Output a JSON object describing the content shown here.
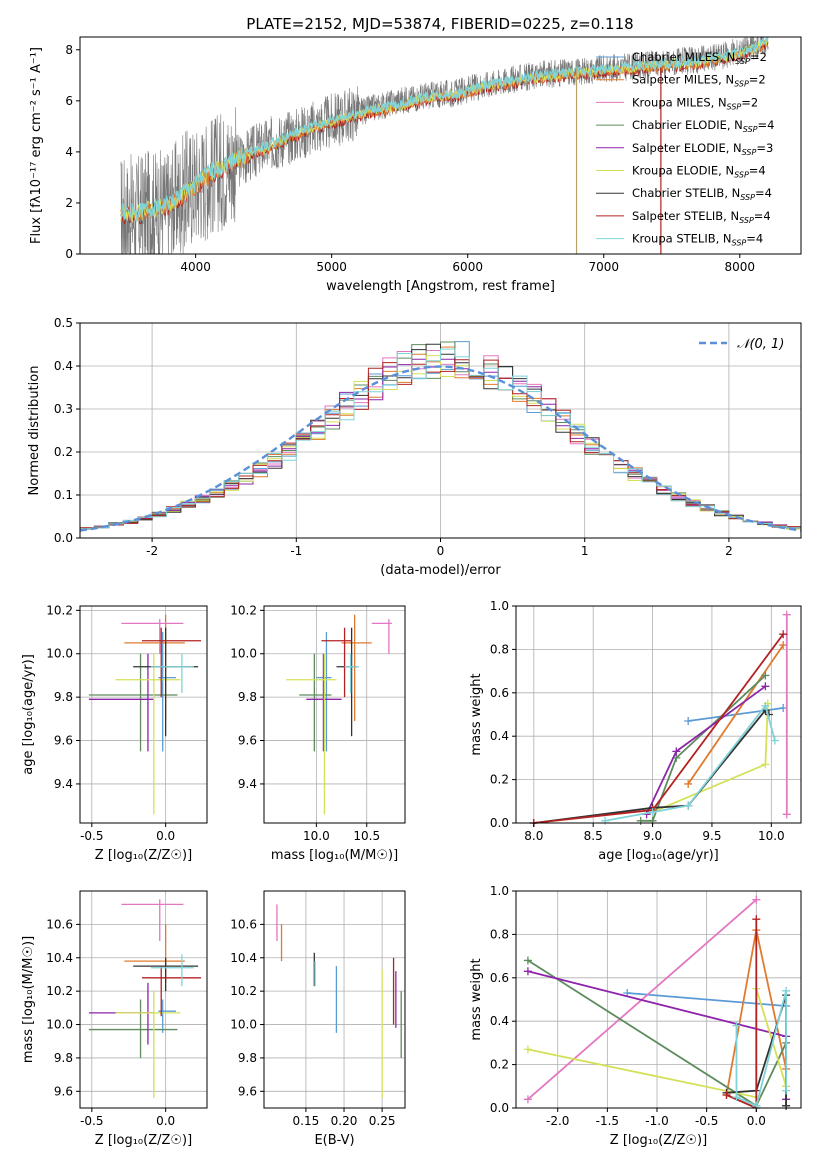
{
  "figure": {
    "title": "PLATE=2152, MJD=53874, FIBERID=0225, z=0.118"
  },
  "colors": {
    "chabrier_miles": "#5b9bd5",
    "salpeter_miles": "#e07a2e",
    "kroupa_miles": "#e377c2",
    "chabrier_elodie": "#5e8c5e",
    "salpeter_elodie": "#8e24aa",
    "kroupa_elodie": "#d4e157",
    "chabrier_stelib": "#333333",
    "salpeter_stelib": "#b22222",
    "kroupa_stelib": "#7fd3d8",
    "normal": "#5b8fd9"
  },
  "chart_data": [
    {
      "id": "spectrum",
      "type": "line",
      "xlabel": "wavelength [Angstrom, rest frame]",
      "ylabel": "Flux [fλ10⁻¹⁷ erg cm⁻² s⁻¹ A⁻¹]",
      "xlim": [
        3150,
        8450
      ],
      "ylim": [
        0,
        8.5
      ],
      "xticks": [
        4000,
        5000,
        6000,
        7000,
        8000
      ],
      "yticks": [
        0,
        2,
        4,
        6,
        8
      ],
      "grid": false,
      "legend_placement": "top-right",
      "legend": [
        "Chabrier MILES, N_SSP=2",
        "Salpeter MILES, N_SSP=2",
        "Kroupa MILES, N_SSP=2",
        "Chabrier ELODIE, N_SSP=4",
        "Salpeter ELODIE, N_SSP=3",
        "Kroupa ELODIE, N_SSP=4",
        "Chabrier STELIB, N_SSP=4",
        "Salpeter STELIB, N_SSP=4",
        "Kroupa STELIB, N_SSP=4"
      ],
      "series": [
        {
          "key": "data",
          "x": [
            3450,
            3550,
            3650,
            3800,
            3950,
            4100,
            4300,
            4500,
            4700,
            4900,
            5100,
            5300,
            5500,
            5700,
            5900,
            6100,
            6300,
            6500,
            6700,
            6900,
            7100,
            7300,
            7500,
            7700,
            7900,
            8100,
            8200
          ],
          "y": [
            1.6,
            1.5,
            1.7,
            1.8,
            2.6,
            3.0,
            3.6,
            4.2,
            4.6,
            5.0,
            5.4,
            5.7,
            6.0,
            6.2,
            6.3,
            6.6,
            6.8,
            7.0,
            7.1,
            7.2,
            7.3,
            7.4,
            7.5,
            7.6,
            7.8,
            8.1,
            8.4
          ]
        },
        {
          "key": "model",
          "x": [
            3450,
            3550,
            3650,
            3800,
            3950,
            4100,
            4300,
            4500,
            4700,
            4900,
            5100,
            5300,
            5500,
            5700,
            5900,
            6100,
            6300,
            6500,
            6700,
            6900,
            7100,
            7300,
            7500,
            7700,
            7900,
            8100,
            8200
          ],
          "y": [
            1.6,
            1.5,
            1.7,
            1.9,
            2.5,
            3.1,
            3.7,
            4.1,
            4.6,
            5.0,
            5.3,
            5.6,
            5.8,
            6.1,
            6.2,
            6.5,
            6.7,
            6.9,
            7.0,
            7.1,
            7.2,
            7.3,
            7.4,
            7.5,
            7.7,
            8.0,
            8.3
          ]
        }
      ]
    },
    {
      "id": "residuals",
      "type": "line",
      "xlabel": "(data-model)/error",
      "ylabel": "Normed distribution",
      "xlim": [
        -2.5,
        2.5
      ],
      "ylim": [
        0,
        0.5
      ],
      "xticks": [
        -2,
        -1,
        0,
        1,
        2
      ],
      "yticks": [
        0,
        0.1,
        0.2,
        0.3,
        0.4,
        0.5
      ],
      "grid": true,
      "legend_placement": "top-right",
      "legend": [
        "𝒩(0, 1)"
      ],
      "bin_edges": [
        -2.5,
        -2.4,
        -2.3,
        -2.2,
        -2.1,
        -2.0,
        -1.9,
        -1.8,
        -1.7,
        -1.6,
        -1.5,
        -1.4,
        -1.3,
        -1.2,
        -1.1,
        -1.0,
        -0.9,
        -0.8,
        -0.7,
        -0.6,
        -0.5,
        -0.4,
        -0.3,
        -0.2,
        -0.1,
        0.0,
        0.1,
        0.2,
        0.3,
        0.4,
        0.5,
        0.6,
        0.7,
        0.8,
        0.9,
        1.0,
        1.1,
        1.2,
        1.3,
        1.4,
        1.5,
        1.6,
        1.7,
        1.8,
        1.9,
        2.0,
        2.1,
        2.2,
        2.3,
        2.4,
        2.5
      ],
      "base_hist": [
        0.022,
        0.026,
        0.032,
        0.038,
        0.045,
        0.055,
        0.066,
        0.078,
        0.09,
        0.106,
        0.122,
        0.14,
        0.158,
        0.178,
        0.2,
        0.226,
        0.252,
        0.28,
        0.306,
        0.334,
        0.358,
        0.38,
        0.396,
        0.408,
        0.416,
        0.418,
        0.414,
        0.404,
        0.39,
        0.37,
        0.348,
        0.322,
        0.296,
        0.268,
        0.242,
        0.216,
        0.192,
        0.17,
        0.15,
        0.13,
        0.112,
        0.096,
        0.082,
        0.07,
        0.058,
        0.048,
        0.04,
        0.034,
        0.028,
        0.024
      ],
      "normal": {
        "mu": 0,
        "sigma": 1
      }
    },
    {
      "id": "age_vs_Z",
      "type": "scatter",
      "xlabel": "Z [log₁₀(Z/Z☉)]",
      "ylabel": "age  [log₁₀(age/yr)]",
      "xlim": [
        -0.58,
        0.28
      ],
      "ylim": [
        9.22,
        10.22
      ],
      "xticks": [
        -0.5,
        0.0
      ],
      "yticks": [
        9.4,
        9.6,
        9.8,
        10.0,
        10.2
      ],
      "grid": true,
      "points": [
        {
          "key": "chabrier_miles",
          "x": -0.02,
          "xlo": -0.05,
          "xhi": 0.07,
          "y": 9.89,
          "ylo": 9.55,
          "yhi": 10.1
        },
        {
          "key": "salpeter_miles",
          "x": 0.0,
          "xlo": -0.28,
          "xhi": 0.13,
          "y": 10.05,
          "ylo": 9.69,
          "yhi": 10.18
        },
        {
          "key": "kroupa_miles",
          "x": -0.04,
          "xlo": -0.3,
          "xhi": 0.12,
          "y": 10.14,
          "ylo": 10.0,
          "yhi": 10.16
        },
        {
          "key": "chabrier_elodie",
          "x": -0.17,
          "xlo": -0.52,
          "xhi": 0.08,
          "y": 9.81,
          "ylo": 9.55,
          "yhi": 10.0
        },
        {
          "key": "salpeter_elodie",
          "x": -0.12,
          "xlo": -0.52,
          "xhi": -0.08,
          "y": 9.79,
          "ylo": 9.55,
          "yhi": 10.0
        },
        {
          "key": "kroupa_elodie",
          "x": -0.08,
          "xlo": -0.34,
          "xhi": 0.1,
          "y": 9.88,
          "ylo": 9.26,
          "yhi": 10.0
        },
        {
          "key": "chabrier_stelib",
          "x": 0.0,
          "xlo": -0.22,
          "xhi": 0.22,
          "y": 9.94,
          "ylo": 9.62,
          "yhi": 10.12
        },
        {
          "key": "salpeter_stelib",
          "x": -0.03,
          "xlo": -0.16,
          "xhi": 0.24,
          "y": 10.06,
          "ylo": 9.8,
          "yhi": 10.12
        },
        {
          "key": "kroupa_stelib",
          "x": 0.11,
          "xlo": -0.1,
          "xhi": 0.19,
          "y": 9.94,
          "ylo": 9.82,
          "yhi": 10.0
        }
      ]
    },
    {
      "id": "age_vs_mass",
      "type": "scatter",
      "xlabel": "mass [log₁₀(M/M☉)]",
      "ylabel": "",
      "xlim": [
        9.48,
        10.88
      ],
      "ylim": [
        9.22,
        10.22
      ],
      "xticks": [
        10.0,
        10.5
      ],
      "yticks": [
        9.4,
        9.6,
        9.8,
        10.0,
        10.2
      ],
      "grid": true,
      "points": [
        {
          "key": "chabrier_miles",
          "x": 10.1,
          "xlo": 10.0,
          "xhi": 10.15,
          "y": 9.89,
          "ylo": 9.55,
          "yhi": 10.1
        },
        {
          "key": "salpeter_miles",
          "x": 10.38,
          "xlo": 10.25,
          "xhi": 10.55,
          "y": 10.05,
          "ylo": 9.69,
          "yhi": 10.18
        },
        {
          "key": "kroupa_miles",
          "x": 10.72,
          "xlo": 10.55,
          "xhi": 10.75,
          "y": 10.14,
          "ylo": 10.0,
          "yhi": 10.16
        },
        {
          "key": "chabrier_elodie",
          "x": 9.98,
          "xlo": 9.83,
          "xhi": 10.15,
          "y": 9.81,
          "ylo": 9.55,
          "yhi": 10.0
        },
        {
          "key": "salpeter_elodie",
          "x": 10.07,
          "xlo": 9.9,
          "xhi": 10.25,
          "y": 9.79,
          "ylo": 9.55,
          "yhi": 10.0
        },
        {
          "key": "kroupa_elodie",
          "x": 10.08,
          "xlo": 9.7,
          "xhi": 10.2,
          "y": 9.88,
          "ylo": 9.26,
          "yhi": 10.0
        },
        {
          "key": "chabrier_stelib",
          "x": 10.35,
          "xlo": 10.2,
          "xhi": 10.4,
          "y": 9.94,
          "ylo": 9.62,
          "yhi": 10.12
        },
        {
          "key": "salpeter_stelib",
          "x": 10.28,
          "xlo": 10.05,
          "xhi": 10.35,
          "y": 10.06,
          "ylo": 9.8,
          "yhi": 10.12
        },
        {
          "key": "kroupa_stelib",
          "x": 10.34,
          "xlo": 10.28,
          "xhi": 10.42,
          "y": 9.94,
          "ylo": 9.82,
          "yhi": 10.0
        }
      ]
    },
    {
      "id": "mass_weight_vs_age",
      "type": "line",
      "xlabel": "age  [log₁₀(age/yr)]",
      "ylabel": "mass weight",
      "xlim": [
        7.85,
        10.25
      ],
      "ylim": [
        0,
        1
      ],
      "xticks": [
        8.0,
        8.5,
        9.0,
        9.5,
        10.0
      ],
      "yticks": [
        0,
        0.2,
        0.4,
        0.6,
        0.8,
        1.0
      ],
      "grid": true,
      "series": [
        {
          "key": "chabrier_miles",
          "x": [
            9.3,
            10.1
          ],
          "y": [
            0.47,
            0.53
          ]
        },
        {
          "key": "salpeter_miles",
          "x": [
            9.3,
            10.1
          ],
          "y": [
            0.18,
            0.82
          ]
        },
        {
          "key": "kroupa_miles",
          "x": [
            10.13,
            10.13
          ],
          "y": [
            0.04,
            0.96
          ]
        },
        {
          "key": "chabrier_elodie",
          "x": [
            8.9,
            9.0,
            9.2,
            9.95
          ],
          "y": [
            0.01,
            0.01,
            0.3,
            0.68
          ]
        },
        {
          "key": "salpeter_elodie",
          "x": [
            8.95,
            9.2,
            9.95
          ],
          "y": [
            0.04,
            0.33,
            0.63
          ]
        },
        {
          "key": "kroupa_elodie",
          "x": [
            9.0,
            9.95,
            9.97
          ],
          "y": [
            0.05,
            0.27,
            0.55
          ]
        },
        {
          "key": "chabrier_stelib",
          "x": [
            8.0,
            9.0,
            9.3,
            9.95,
            9.98
          ],
          "y": [
            0.0,
            0.07,
            0.08,
            0.52,
            0.5
          ]
        },
        {
          "key": "salpeter_stelib",
          "x": [
            8.0,
            9.0,
            10.1
          ],
          "y": [
            0.0,
            0.06,
            0.87
          ]
        },
        {
          "key": "kroupa_stelib",
          "x": [
            8.6,
            9.0,
            9.3,
            9.95,
            10.03
          ],
          "y": [
            0.01,
            0.05,
            0.08,
            0.54,
            0.38
          ]
        }
      ]
    },
    {
      "id": "mass_vs_Z",
      "type": "scatter",
      "xlabel": "Z [log₁₀(Z/Z☉)]",
      "ylabel": "mass [log₁₀(M/M☉)]",
      "xlim": [
        -0.58,
        0.28
      ],
      "ylim": [
        9.5,
        10.8
      ],
      "xticks": [
        -0.5,
        0.0
      ],
      "yticks": [
        9.6,
        9.8,
        10.0,
        10.2,
        10.4,
        10.6
      ],
      "grid": true,
      "points": [
        {
          "key": "chabrier_miles",
          "x": -0.02,
          "xlo": -0.05,
          "xhi": 0.07,
          "y": 10.08,
          "ylo": 9.95,
          "yhi": 10.15
        },
        {
          "key": "salpeter_miles",
          "x": 0.0,
          "xlo": -0.28,
          "xhi": 0.13,
          "y": 10.38,
          "ylo": 10.25,
          "yhi": 10.6
        },
        {
          "key": "kroupa_miles",
          "x": -0.04,
          "xlo": -0.3,
          "xhi": 0.12,
          "y": 10.72,
          "ylo": 10.5,
          "yhi": 10.75
        },
        {
          "key": "chabrier_elodie",
          "x": -0.17,
          "xlo": -0.52,
          "xhi": 0.08,
          "y": 9.97,
          "ylo": 9.8,
          "yhi": 10.15
        },
        {
          "key": "salpeter_elodie",
          "x": -0.12,
          "xlo": -0.52,
          "xhi": -0.08,
          "y": 10.07,
          "ylo": 9.88,
          "yhi": 10.25
        },
        {
          "key": "kroupa_elodie",
          "x": -0.08,
          "xlo": -0.34,
          "xhi": 0.1,
          "y": 10.07,
          "ylo": 9.56,
          "yhi": 10.2
        },
        {
          "key": "chabrier_stelib",
          "x": 0.0,
          "xlo": -0.22,
          "xhi": 0.22,
          "y": 10.35,
          "ylo": 10.2,
          "yhi": 10.4
        },
        {
          "key": "salpeter_stelib",
          "x": -0.03,
          "xlo": -0.16,
          "xhi": 0.24,
          "y": 10.28,
          "ylo": 10.05,
          "yhi": 10.35
        },
        {
          "key": "kroupa_stelib",
          "x": 0.11,
          "xlo": -0.1,
          "xhi": 0.19,
          "y": 10.34,
          "ylo": 10.23,
          "yhi": 10.42
        }
      ]
    },
    {
      "id": "mass_vs_ebv",
      "type": "scatter",
      "xlabel": "E(B-V)",
      "ylabel": "",
      "xlim": [
        0.095,
        0.28
      ],
      "ylim": [
        9.5,
        10.8
      ],
      "xticks": [
        0.15,
        0.2,
        0.25
      ],
      "yticks": [
        9.6,
        9.8,
        10.0,
        10.2,
        10.4,
        10.6
      ],
      "grid": true,
      "points": [
        {
          "key": "kroupa_miles",
          "x": 0.112,
          "ylo": 10.5,
          "yhi": 10.72
        },
        {
          "key": "salpeter_miles",
          "x": 0.118,
          "ylo": 10.38,
          "yhi": 10.6
        },
        {
          "key": "chabrier_stelib",
          "x": 0.161,
          "ylo": 10.23,
          "yhi": 10.43
        },
        {
          "key": "kroupa_stelib",
          "x": 0.162,
          "ylo": 10.23,
          "yhi": 10.38
        },
        {
          "key": "chabrier_miles",
          "x": 0.19,
          "ylo": 9.95,
          "yhi": 10.35
        },
        {
          "key": "kroupa_elodie",
          "x": 0.25,
          "ylo": 9.56,
          "yhi": 10.33
        },
        {
          "key": "salpeter_stelib",
          "x": 0.265,
          "ylo": 10.0,
          "yhi": 10.4
        },
        {
          "key": "salpeter_elodie",
          "x": 0.268,
          "ylo": 9.98,
          "yhi": 10.32
        },
        {
          "key": "chabrier_elodie",
          "x": 0.275,
          "ylo": 9.8,
          "yhi": 10.2
        }
      ]
    },
    {
      "id": "mass_weight_vs_Z",
      "type": "line",
      "xlabel": "Z [log₁₀(Z/Z☉)]",
      "ylabel": "mass weight",
      "xlim": [
        -2.42,
        0.45
      ],
      "ylim": [
        0,
        1
      ],
      "xticks": [
        -2.0,
        -1.5,
        -1.0,
        -0.5,
        0.0
      ],
      "yticks": [
        0,
        0.2,
        0.4,
        0.6,
        0.8,
        1.0
      ],
      "grid": true,
      "series": [
        {
          "key": "chabrier_miles",
          "x": [
            -1.3,
            0.3
          ],
          "y": [
            0.53,
            0.47
          ]
        },
        {
          "key": "salpeter_miles",
          "x": [
            -0.3,
            0.0,
            0.3
          ],
          "y": [
            0.06,
            0.82,
            0.18
          ]
        },
        {
          "key": "kroupa_miles",
          "x": [
            -2.3,
            0.0
          ],
          "y": [
            0.04,
            0.96
          ]
        },
        {
          "key": "chabrier_elodie",
          "x": [
            -2.3,
            0.0,
            0.3,
            0.3
          ],
          "y": [
            0.68,
            0.01,
            0.3,
            0.01
          ]
        },
        {
          "key": "salpeter_elodie",
          "x": [
            -2.3,
            0.3,
            0.3
          ],
          "y": [
            0.63,
            0.33,
            0.04
          ]
        },
        {
          "key": "kroupa_elodie",
          "x": [
            -2.3,
            0.0,
            0.0,
            0.3
          ],
          "y": [
            0.27,
            0.05,
            0.55,
            0.1
          ]
        },
        {
          "key": "chabrier_stelib",
          "x": [
            -0.3,
            0.0,
            0.3,
            0.3
          ],
          "y": [
            0.07,
            0.08,
            0.52,
            0.01
          ]
        },
        {
          "key": "salpeter_stelib",
          "x": [
            -0.3,
            0.0,
            0.0
          ],
          "y": [
            0.06,
            0.0,
            0.87
          ]
        },
        {
          "key": "kroupa_stelib",
          "x": [
            -0.2,
            -0.2,
            0.0,
            0.3,
            0.3
          ],
          "y": [
            0.38,
            0.05,
            0.01,
            0.54,
            0.08
          ]
        }
      ]
    }
  ]
}
